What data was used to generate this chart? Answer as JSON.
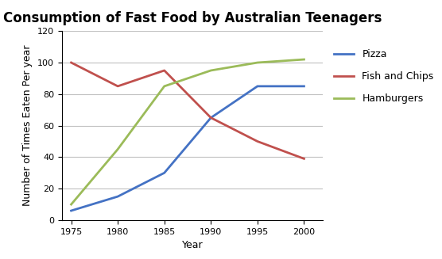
{
  "title": "Consumption of Fast Food by Australian Teenagers",
  "xlabel": "Year",
  "ylabel": "Number of Times Eaten Per year",
  "years": [
    1975,
    1980,
    1985,
    1990,
    1995,
    2000
  ],
  "pizza": [
    6,
    15,
    30,
    65,
    85,
    85
  ],
  "fish_and_chips": [
    100,
    85,
    95,
    65,
    50,
    39
  ],
  "hamburgers": [
    10,
    45,
    85,
    95,
    100,
    102
  ],
  "pizza_color": "#4472C4",
  "fish_color": "#C0504D",
  "hamburgers_color": "#9BBB59",
  "ylim": [
    0,
    120
  ],
  "xlim": [
    1974,
    2002
  ],
  "xticks": [
    1975,
    1980,
    1985,
    1990,
    1995,
    2000
  ],
  "yticks": [
    0,
    20,
    40,
    60,
    80,
    100,
    120
  ],
  "legend_labels": [
    "Pizza",
    "Fish and Chips",
    "Hamburgers"
  ],
  "line_width": 2.0,
  "title_fontsize": 12,
  "label_fontsize": 9,
  "tick_fontsize": 8,
  "legend_fontsize": 9,
  "background_color": "#ffffff",
  "grid_color": "#c0c0c0"
}
